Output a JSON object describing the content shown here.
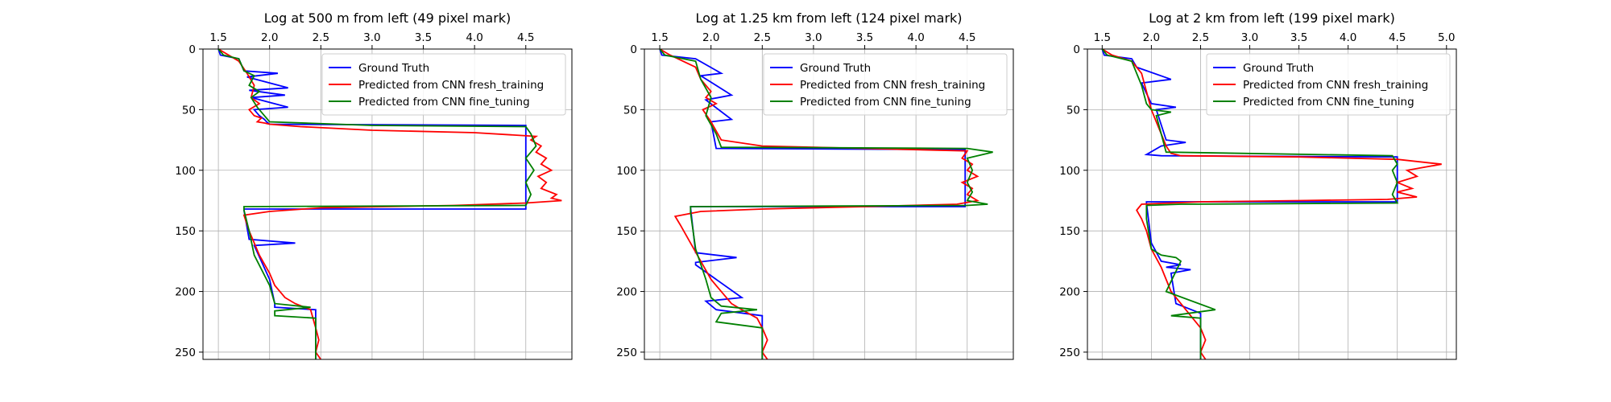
{
  "chart_data": [
    {
      "type": "line",
      "title": "Log at 500 m from left (49 pixel mark)",
      "xlim": [
        1.35,
        4.95
      ],
      "ylim": [
        256,
        0
      ],
      "xticks": [
        1.5,
        2.0,
        2.5,
        3.0,
        3.5,
        4.0,
        4.5
      ],
      "xtick_labels": [
        "1.5",
        "2.0",
        "2.5",
        "3.0",
        "3.5",
        "4.0",
        "4.5"
      ],
      "yticks": [
        0,
        50,
        100,
        150,
        200,
        250
      ],
      "ytick_labels": [
        "0",
        "50",
        "100",
        "150",
        "200",
        "250"
      ],
      "x_axis_position": "top",
      "grid": true,
      "legend_position": "top-right",
      "series": [
        {
          "name": "Ground Truth",
          "color": "#0000ff",
          "x": [
            1.5,
            1.52,
            1.7,
            1.75,
            2.08,
            1.78,
            2.18,
            1.8,
            2.15,
            1.82,
            2.18,
            1.85,
            1.9,
            1.95,
            1.97,
            2.0,
            4.5,
            4.5,
            1.75,
            1.75,
            1.8,
            2.25,
            1.85,
            2.0,
            2.05,
            2.05,
            2.45,
            2.45
          ],
          "y": [
            0,
            5,
            8,
            18,
            20,
            23,
            32,
            34,
            38,
            40,
            48,
            50,
            55,
            58,
            60,
            62,
            63,
            132,
            132,
            133,
            157,
            160,
            162,
            190,
            210,
            213,
            215,
            256
          ]
        },
        {
          "name": "Predicted from CNN fresh_training",
          "color": "#ff0000",
          "x": [
            1.5,
            1.6,
            1.7,
            1.78,
            1.85,
            1.82,
            1.9,
            1.8,
            1.85,
            1.92,
            1.88,
            1.95,
            2.0,
            2.3,
            3.0,
            4.0,
            4.6,
            4.55,
            4.65,
            4.6,
            4.7,
            4.65,
            4.75,
            4.62,
            4.7,
            4.65,
            4.8,
            4.75,
            4.85,
            4.5,
            3.8,
            2.5,
            2.0,
            1.75,
            1.8,
            1.9,
            2.0,
            2.05,
            2.15,
            2.25,
            2.4,
            2.45,
            2.48,
            2.45,
            2.5
          ],
          "y": [
            0,
            5,
            10,
            20,
            30,
            40,
            45,
            50,
            55,
            57,
            60,
            61,
            62,
            64,
            67,
            69,
            72,
            75,
            80,
            85,
            90,
            95,
            100,
            105,
            110,
            115,
            120,
            123,
            125,
            127,
            129,
            131,
            134,
            137,
            150,
            170,
            185,
            195,
            205,
            210,
            215,
            230,
            240,
            250,
            256
          ]
        },
        {
          "name": "Predicted from CNN fine_tuning",
          "color": "#008000",
          "x": [
            1.5,
            1.55,
            1.7,
            1.75,
            1.85,
            1.8,
            1.9,
            1.82,
            1.88,
            1.95,
            2.0,
            3.0,
            4.5,
            4.55,
            4.6,
            4.5,
            4.58,
            4.5,
            4.55,
            4.5,
            1.75,
            1.75,
            1.8,
            1.85,
            2.0,
            2.05,
            2.4,
            2.05,
            2.05,
            2.45,
            2.45
          ],
          "y": [
            0,
            5,
            8,
            18,
            22,
            30,
            35,
            40,
            48,
            55,
            60,
            63,
            64,
            70,
            80,
            90,
            100,
            110,
            120,
            129,
            130,
            133,
            150,
            170,
            195,
            210,
            213,
            216,
            220,
            222,
            256
          ]
        }
      ]
    },
    {
      "type": "line",
      "title": "Log at 1.25 km from left (124 pixel mark)",
      "xlim": [
        1.35,
        4.95
      ],
      "ylim": [
        256,
        0
      ],
      "xticks": [
        1.5,
        2.0,
        2.5,
        3.0,
        3.5,
        4.0,
        4.5
      ],
      "xtick_labels": [
        "1.5",
        "2.0",
        "2.5",
        "3.0",
        "3.5",
        "4.0",
        "4.5"
      ],
      "yticks": [
        0,
        50,
        100,
        150,
        200,
        250
      ],
      "ytick_labels": [
        "0",
        "50",
        "100",
        "150",
        "200",
        "250"
      ],
      "x_axis_position": "top",
      "grid": true,
      "legend_position": "top-right",
      "series": [
        {
          "name": "Ground Truth",
          "color": "#0000ff",
          "x": [
            1.5,
            1.52,
            1.85,
            2.1,
            1.9,
            2.2,
            1.95,
            2.2,
            2.0,
            2.05,
            4.48,
            4.48,
            1.8,
            1.8,
            1.85,
            2.25,
            1.85,
            1.85,
            2.3,
            1.95,
            2.05,
            2.5,
            2.5
          ],
          "y": [
            0,
            5,
            8,
            20,
            22,
            38,
            42,
            58,
            60,
            82,
            83,
            130,
            130,
            131,
            168,
            172,
            176,
            178,
            205,
            208,
            215,
            220,
            256
          ]
        },
        {
          "name": "Predicted from CNN fresh_training",
          "color": "#ff0000",
          "x": [
            1.5,
            1.6,
            1.85,
            1.9,
            2.0,
            1.95,
            2.05,
            1.92,
            2.0,
            2.1,
            2.5,
            3.5,
            4.5,
            4.45,
            4.55,
            4.5,
            4.6,
            4.45,
            4.55,
            4.5,
            4.6,
            4.4,
            3.5,
            2.5,
            1.9,
            1.65,
            1.7,
            1.8,
            1.9,
            2.0,
            2.1,
            2.2,
            2.3,
            2.45,
            2.5,
            2.55,
            2.5,
            2.55
          ],
          "y": [
            0,
            5,
            15,
            25,
            35,
            40,
            45,
            50,
            60,
            75,
            80,
            82,
            84,
            90,
            95,
            100,
            105,
            110,
            115,
            120,
            125,
            128,
            130,
            132,
            134,
            138,
            145,
            160,
            175,
            190,
            200,
            210,
            215,
            222,
            230,
            240,
            250,
            256
          ]
        },
        {
          "name": "Predicted from CNN fine_tuning",
          "color": "#008000",
          "x": [
            1.5,
            1.55,
            1.85,
            1.9,
            2.0,
            1.95,
            2.05,
            2.1,
            4.5,
            4.75,
            4.5,
            4.55,
            4.5,
            4.55,
            4.5,
            4.7,
            4.5,
            1.8,
            1.8,
            1.85,
            1.95,
            2.0,
            2.1,
            2.45,
            2.1,
            2.05,
            2.5,
            2.5
          ],
          "y": [
            0,
            5,
            10,
            25,
            40,
            55,
            70,
            81,
            82,
            85,
            90,
            100,
            110,
            118,
            125,
            128,
            129,
            130,
            135,
            165,
            190,
            205,
            212,
            215,
            218,
            225,
            230,
            256
          ]
        }
      ]
    },
    {
      "type": "line",
      "title": "Log at 2 km from left (199 pixel mark)",
      "xlim": [
        1.35,
        5.1
      ],
      "ylim": [
        256,
        0
      ],
      "xticks": [
        1.5,
        2.0,
        2.5,
        3.0,
        3.5,
        4.0,
        4.5,
        5.0
      ],
      "xtick_labels": [
        "1.5",
        "2.0",
        "2.5",
        "3.0",
        "3.5",
        "4.0",
        "4.5",
        "5.0"
      ],
      "yticks": [
        0,
        50,
        100,
        150,
        200,
        250
      ],
      "ytick_labels": [
        "0",
        "50",
        "100",
        "150",
        "200",
        "250"
      ],
      "x_axis_position": "top",
      "grid": true,
      "legend_position": "top-right",
      "series": [
        {
          "name": "Ground Truth",
          "color": "#0000ff",
          "x": [
            1.5,
            1.52,
            1.8,
            1.85,
            2.2,
            1.9,
            2.0,
            2.25,
            2.05,
            2.15,
            2.35,
            2.1,
            1.95,
            2.1,
            4.5,
            4.5,
            1.95,
            1.95,
            2.0,
            2.1,
            2.3,
            2.15,
            2.4,
            2.2,
            2.25,
            2.5,
            2.5
          ],
          "y": [
            0,
            5,
            8,
            15,
            25,
            28,
            45,
            48,
            50,
            75,
            77,
            80,
            87,
            88,
            89,
            126,
            126,
            127,
            160,
            175,
            178,
            180,
            182,
            185,
            210,
            218,
            256
          ]
        },
        {
          "name": "Predicted from CNN fresh_training",
          "color": "#ff0000",
          "x": [
            1.5,
            1.6,
            1.8,
            1.9,
            1.95,
            2.0,
            2.05,
            2.1,
            2.15,
            2.2,
            2.3,
            3.5,
            4.5,
            4.95,
            4.6,
            4.7,
            4.5,
            4.65,
            4.5,
            4.7,
            4.4,
            3.5,
            2.5,
            1.9,
            1.85,
            1.9,
            1.95,
            2.0,
            2.1,
            2.15,
            2.2,
            2.3,
            2.4,
            2.5,
            2.55,
            2.5,
            2.55
          ],
          "y": [
            0,
            5,
            10,
            20,
            35,
            50,
            60,
            70,
            80,
            86,
            88,
            89,
            91,
            95,
            100,
            105,
            110,
            115,
            118,
            122,
            124,
            125,
            126,
            128,
            133,
            140,
            150,
            165,
            180,
            190,
            200,
            210,
            220,
            230,
            240,
            250,
            256
          ]
        },
        {
          "name": "Predicted from CNN fine_tuning",
          "color": "#008000",
          "x": [
            1.5,
            1.55,
            1.8,
            1.9,
            1.95,
            2.0,
            2.2,
            2.05,
            2.1,
            2.15,
            4.45,
            4.5,
            4.45,
            4.5,
            4.45,
            4.5,
            2.3,
            1.95,
            1.95,
            2.0,
            2.1,
            2.25,
            2.3,
            2.15,
            2.65,
            2.2,
            2.5,
            2.5
          ],
          "y": [
            0,
            5,
            10,
            30,
            45,
            50,
            52,
            55,
            70,
            85,
            88,
            95,
            100,
            110,
            120,
            127,
            128,
            129,
            140,
            165,
            170,
            172,
            175,
            200,
            215,
            220,
            222,
            256
          ]
        }
      ]
    }
  ]
}
